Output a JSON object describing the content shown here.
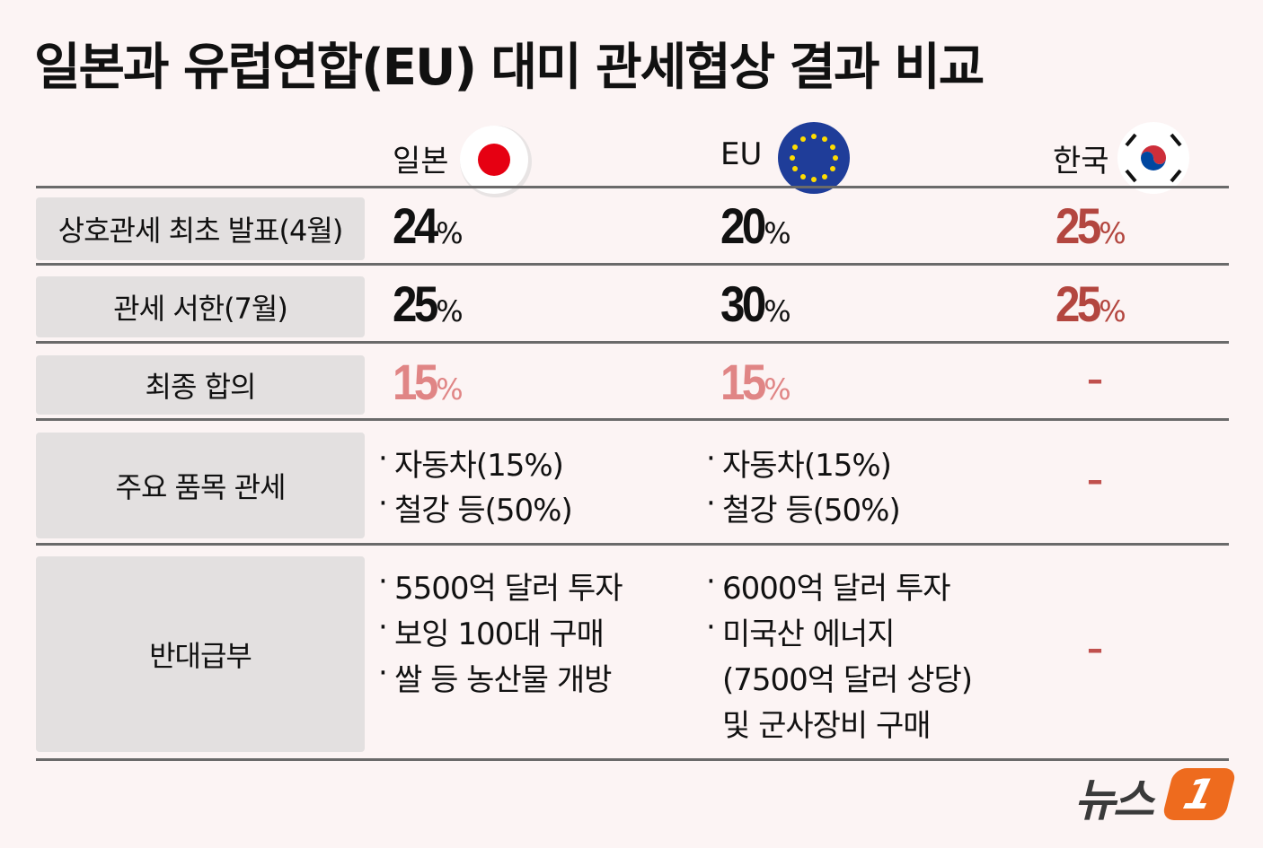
{
  "title": "일본과 유럽연합(EU) 대미 관세협상 결과 비교",
  "columns": [
    "일본",
    "EU",
    "한국"
  ],
  "rows": [
    {
      "label": "상호관세 최초 발표(4월)",
      "cells": [
        {
          "number": "24",
          "unit": "%",
          "color": "#111111"
        },
        {
          "number": "20",
          "unit": "%",
          "color": "#111111"
        },
        {
          "number": "25",
          "unit": "%",
          "color": "#b3463f"
        }
      ]
    },
    {
      "label": "관세 서한(7월)",
      "cells": [
        {
          "number": "25",
          "unit": "%",
          "color": "#111111"
        },
        {
          "number": "30",
          "unit": "%",
          "color": "#111111"
        },
        {
          "number": "25",
          "unit": "%",
          "color": "#b3463f"
        }
      ]
    },
    {
      "label": "최종 합의",
      "cells": [
        {
          "number": "15",
          "unit": "%",
          "color": "#e08585"
        },
        {
          "number": "15",
          "unit": "%",
          "color": "#e08585"
        },
        {
          "text": "–",
          "color": "#c0504d"
        }
      ]
    },
    {
      "label": "주요 품목 관세",
      "cells": [
        {
          "items": [
            [
              "자동차(15%)"
            ],
            [
              "철강 등(50%)"
            ]
          ]
        },
        {
          "items": [
            [
              "자동차(15%)"
            ],
            [
              "철강 등(50%)"
            ]
          ]
        },
        {
          "text": "–",
          "color": "#c0504d"
        }
      ]
    },
    {
      "label": "반대급부",
      "cells": [
        {
          "items": [
            [
              "5500억 달러 투자"
            ],
            [
              "보잉 100대 구매"
            ],
            [
              "쌀 등 농산물 개방"
            ]
          ]
        },
        {
          "items": [
            [
              "6000억 달러 투자"
            ],
            [
              "미국산 에너지",
              "(7500억 달러 상당)",
              "및 군사장비 구매"
            ]
          ]
        },
        {
          "text": "–",
          "color": "#c0504d"
        }
      ]
    }
  ],
  "logo": {
    "text": "뉴스",
    "mark": "1"
  }
}
